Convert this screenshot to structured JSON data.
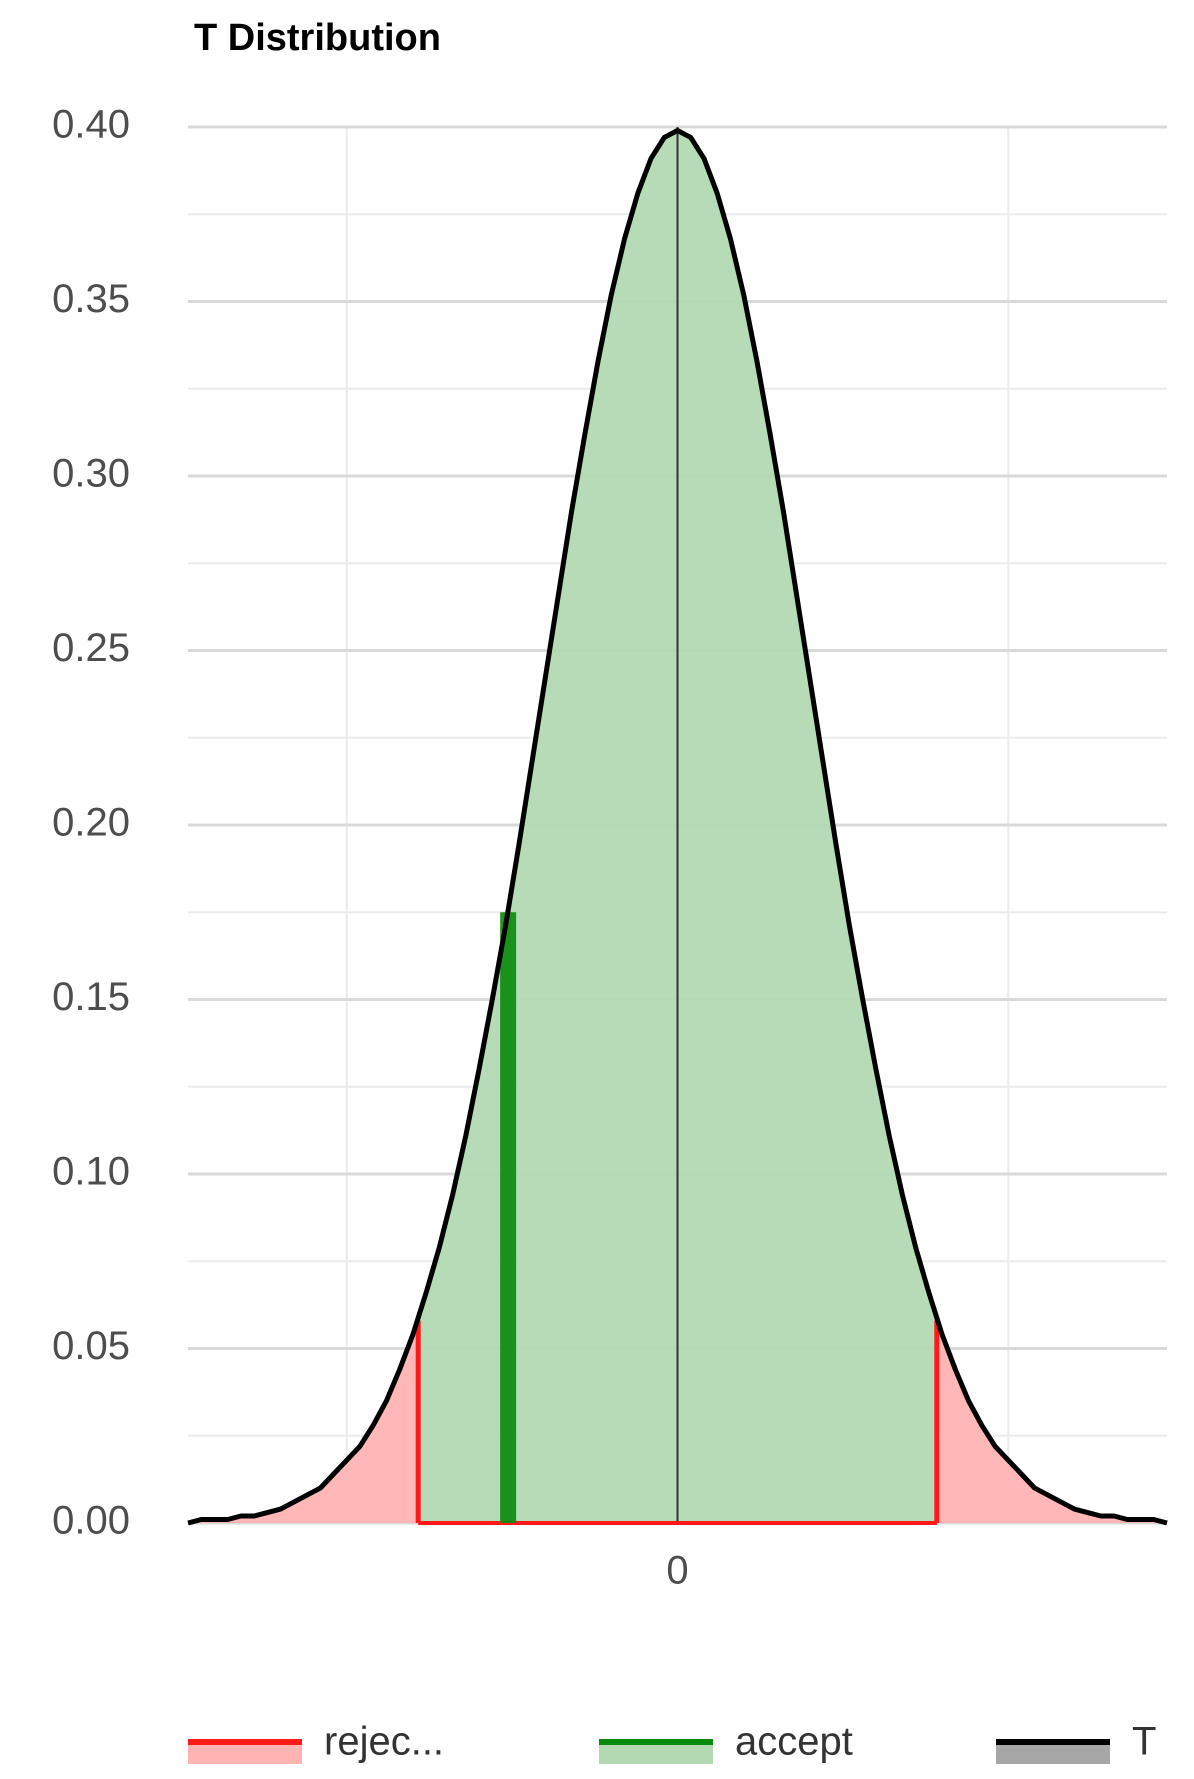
{
  "chart_data": {
    "type": "density",
    "title": "T Distribution",
    "xlim": [
      -3.7,
      3.7
    ],
    "xticks": [
      0
    ],
    "xminor": [
      -2.5,
      2.5
    ],
    "ylim": [
      0,
      0.4
    ],
    "yticks": [
      {
        "value": 0,
        "label": "0.00"
      },
      {
        "value": 0.05,
        "label": "0.05"
      },
      {
        "value": 0.1,
        "label": "0.10"
      },
      {
        "value": 0.15,
        "label": "0.15"
      },
      {
        "value": 0.2,
        "label": "0.20"
      },
      {
        "value": 0.25,
        "label": "0.25"
      },
      {
        "value": 0.3,
        "label": "0.30"
      },
      {
        "value": 0.35,
        "label": "0.35"
      },
      {
        "value": 0.4,
        "label": "0.40"
      }
    ],
    "grid": true,
    "legend": "bottom",
    "series": [
      {
        "name": "rejec...",
        "color": "#ff1a1a",
        "fill": "#ffb3b3",
        "x": [
          -1.96,
          1.96
        ],
        "values": [
          0.058,
          0.058
        ]
      },
      {
        "name": "accept",
        "color": "#0a8a0a",
        "fill": "#b3d9b3",
        "x": [
          -1.28
        ],
        "values": [
          0.175
        ]
      },
      {
        "name": "T",
        "color": "#000000",
        "fill": "#a6a6a6",
        "x": [
          -3.7,
          -3.6,
          -3.5,
          -3.4,
          -3.3,
          -3.2,
          -3.1,
          -3.0,
          -2.9,
          -2.8,
          -2.7,
          -2.6,
          -2.5,
          -2.4,
          -2.3,
          -2.2,
          -2.1,
          -2.0,
          -1.9,
          -1.8,
          -1.7,
          -1.6,
          -1.5,
          -1.4,
          -1.3,
          -1.2,
          -1.1,
          -1.0,
          -0.9,
          -0.8,
          -0.7,
          -0.6,
          -0.5,
          -0.4,
          -0.3,
          -0.2,
          -0.1,
          0,
          0.1,
          0.2,
          0.3,
          0.4,
          0.5,
          0.6,
          0.7,
          0.8,
          0.9,
          1.0,
          1.1,
          1.2,
          1.3,
          1.4,
          1.5,
          1.6,
          1.7,
          1.8,
          1.9,
          2.0,
          2.1,
          2.2,
          2.3,
          2.4,
          2.5,
          2.6,
          2.7,
          2.8,
          2.9,
          3.0,
          3.1,
          3.2,
          3.3,
          3.4,
          3.5,
          3.6,
          3.7
        ],
        "values": [
          0.0,
          0.001,
          0.001,
          0.001,
          0.002,
          0.002,
          0.003,
          0.004,
          0.006,
          0.008,
          0.01,
          0.014,
          0.018,
          0.022,
          0.028,
          0.035,
          0.044,
          0.054,
          0.066,
          0.079,
          0.094,
          0.111,
          0.13,
          0.15,
          0.171,
          0.194,
          0.218,
          0.242,
          0.266,
          0.29,
          0.312,
          0.333,
          0.352,
          0.368,
          0.381,
          0.391,
          0.397,
          0.399,
          0.397,
          0.391,
          0.381,
          0.368,
          0.352,
          0.333,
          0.312,
          0.29,
          0.266,
          0.242,
          0.218,
          0.194,
          0.171,
          0.15,
          0.13,
          0.111,
          0.094,
          0.079,
          0.066,
          0.054,
          0.044,
          0.035,
          0.028,
          0.022,
          0.018,
          0.014,
          0.01,
          0.008,
          0.006,
          0.004,
          0.003,
          0.002,
          0.002,
          0.001,
          0.001,
          0.001,
          0.0
        ]
      }
    ]
  }
}
